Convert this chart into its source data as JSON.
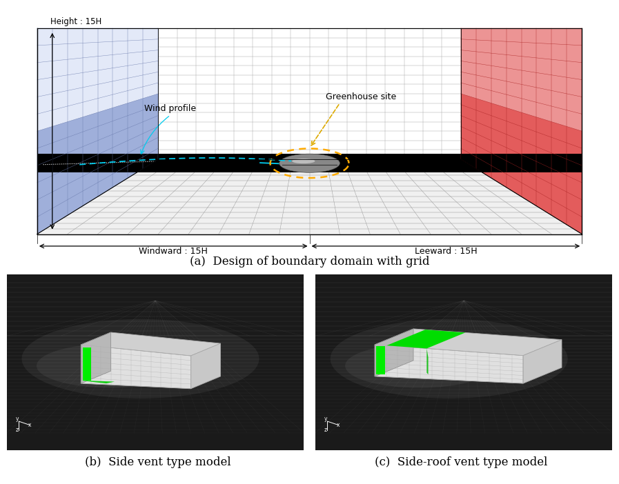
{
  "title_a": "(a)  Design of boundary domain with grid",
  "title_b": "(b)  Side vent type model",
  "title_c": "(c)  Side-roof vent type model",
  "label_height": "Height : 15H",
  "label_windward": "Windward : 15H",
  "label_leeward": "Leeward : 15H",
  "label_wind_profile": "Wind profile",
  "label_greenhouse": "Greenhouse site",
  "bg_color": "#ffffff",
  "blue_color": "#aabbee",
  "red_color": "#dd3333",
  "font_size_caption": 12,
  "font_size_label": 9
}
